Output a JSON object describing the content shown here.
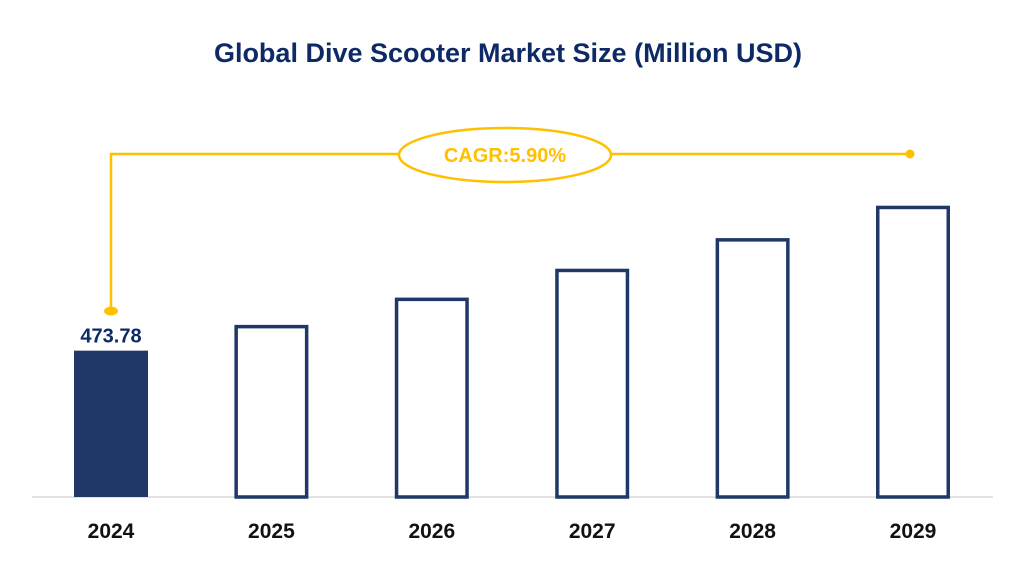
{
  "chart_data": {
    "type": "bar",
    "title": "Global Dive Scooter Market Size (Million USD)",
    "categories": [
      "2024",
      "2025",
      "2026",
      "2027",
      "2028",
      "2029"
    ],
    "values": [
      473.78,
      501.73,
      531.33,
      562.68,
      595.88,
      631.03
    ],
    "data_labels": [
      "473.78",
      "",
      "",
      "",
      "",
      ""
    ],
    "xlabel": "",
    "ylabel": "",
    "ylim": [
      315,
      660
    ],
    "grid": false,
    "annotation": "CAGR:5.90%",
    "colors": {
      "bar": "#1f3868",
      "highlight_fill": "#1f3868",
      "annotation": "#ffc000",
      "title": "#0d2a66",
      "axis": "#d9d9d9"
    }
  }
}
